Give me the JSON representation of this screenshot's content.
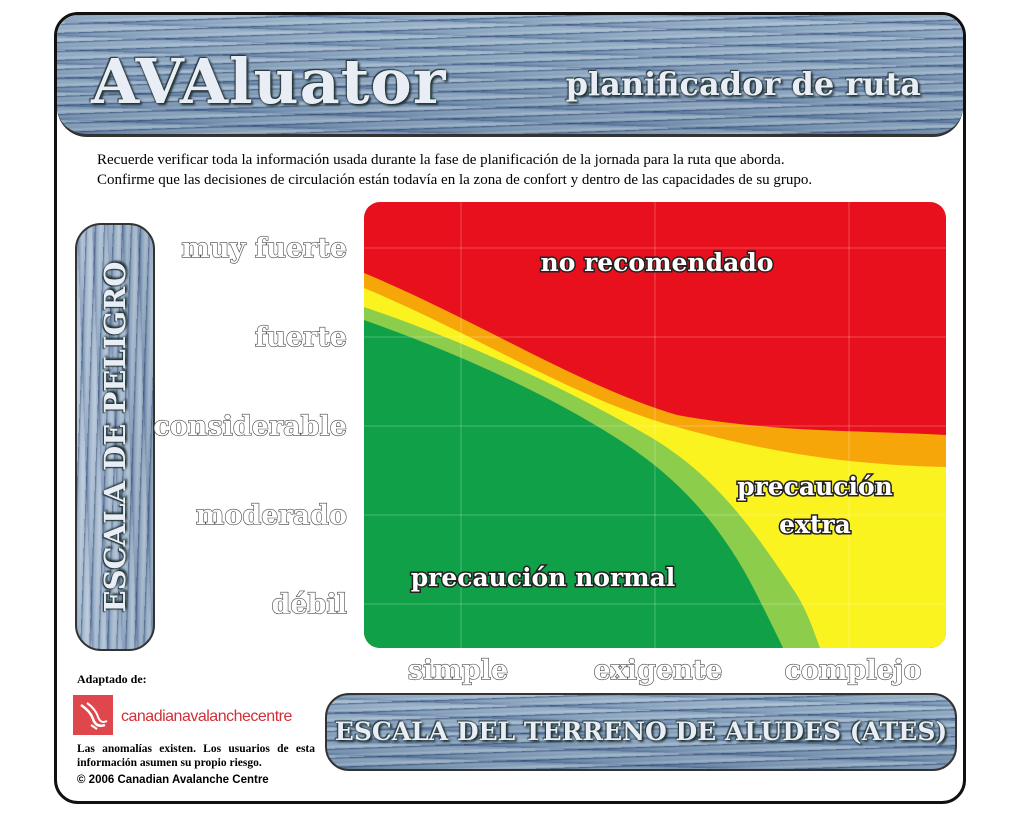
{
  "header": {
    "title": "AVAluator",
    "subtitle": "planificador de ruta"
  },
  "intro": {
    "line1": "Recuerde verificar toda la información usada durante la fase de planificación de la jornada para la ruta que aborda.",
    "line2": "Confirme que las decisiones de circulación están todavía en la zona de confort y dentro de las capacidades de su grupo."
  },
  "danger_scale_label": "ESCALA DE PELIGRO",
  "terrain_scale_label": "ESCALA DEL TERRENO DE ALUDES (ATES)",
  "danger_levels": [
    "muy fuerte",
    "fuerte",
    "considerable",
    "moderado",
    "débil"
  ],
  "terrain_classes": [
    "simple",
    "exigente",
    "complejo"
  ],
  "zones": {
    "red": "no recomendado",
    "yellow_line1": "precaución",
    "yellow_line2": "extra",
    "green": "precaución normal"
  },
  "colors": {
    "red": "#e8101c",
    "orange": "#f7a60a",
    "yellow": "#fbf320",
    "light_green": "#8ccd4c",
    "green": "#10a048"
  },
  "footer": {
    "adapted_from": "Adaptado de:",
    "org_name": "canadianavalanchecentre",
    "disclaimer": "Las anomalías existen. Los usuarios de esta información asumen su propio riesgo.",
    "copyright": "© 2006 Canadian Avalanche Centre"
  }
}
